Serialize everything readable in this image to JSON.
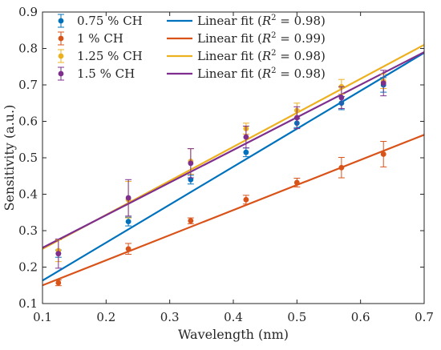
{
  "chart_data": {
    "type": "scatter",
    "xlabel": "Wavelength (nm)",
    "ylabel": "Sensitivity (a.u.)",
    "xlim": [
      0.1,
      0.7
    ],
    "ylim": [
      0.1,
      0.9
    ],
    "xticks": [
      "0.1",
      "0.2",
      "0.3",
      "0.4",
      "0.5",
      "0.6",
      "0.7"
    ],
    "yticks": [
      "0.1",
      "0.2",
      "0.3",
      "0.4",
      "0.5",
      "0.6",
      "0.7",
      "0.8",
      "0.9"
    ],
    "grid": false,
    "legend_position": "top-left",
    "series": [
      {
        "name": "0.75 % CH",
        "color": "#0072BD",
        "x": [
          0.125,
          0.235,
          0.333,
          0.42,
          0.5,
          0.57,
          0.636
        ],
        "y": [
          0.237,
          0.325,
          0.44,
          0.515,
          0.595,
          0.65,
          0.7
        ],
        "err": [
          0.01,
          0.012,
          0.012,
          0.012,
          0.012,
          0.018,
          0.02
        ],
        "fit_name": "Linear fit",
        "fit_r2": "0.98",
        "fit_line": [
          [
            0.1,
            0.163
          ],
          [
            0.7,
            0.788
          ]
        ]
      },
      {
        "name": "1 % CH",
        "color": "#D95319",
        "x": [
          0.125,
          0.235,
          0.333,
          0.42,
          0.5,
          0.57,
          0.636
        ],
        "y": [
          0.157,
          0.25,
          0.327,
          0.385,
          0.432,
          0.473,
          0.51
        ],
        "err": [
          0.008,
          0.015,
          0.008,
          0.012,
          0.012,
          0.028,
          0.035
        ],
        "fit_name": "Linear fit",
        "fit_r2": "0.99",
        "fit_line": [
          [
            0.1,
            0.15
          ],
          [
            0.7,
            0.563
          ]
        ]
      },
      {
        "name": "1.25 % CH",
        "color": "#EDB120",
        "x": [
          0.125,
          0.235,
          0.333,
          0.42,
          0.5,
          0.57,
          0.636
        ],
        "y": [
          0.245,
          0.385,
          0.49,
          0.58,
          0.63,
          0.695,
          0.71
        ],
        "err": [
          0.03,
          0.05,
          0.035,
          0.015,
          0.02,
          0.02,
          0.02
        ],
        "fit_name": "Linear fit",
        "fit_r2": "0.98",
        "fit_line": [
          [
            0.1,
            0.25
          ],
          [
            0.7,
            0.81
          ]
        ]
      },
      {
        "name": "1.5 % CH",
        "color": "#7E2F8E",
        "x": [
          0.125,
          0.235,
          0.333,
          0.42,
          0.5,
          0.57,
          0.636
        ],
        "y": [
          0.237,
          0.39,
          0.485,
          0.557,
          0.61,
          0.665,
          0.705
        ],
        "err": [
          0.04,
          0.05,
          0.04,
          0.03,
          0.03,
          0.03,
          0.035
        ],
        "fit_name": "Linear fit",
        "fit_r2": "0.98",
        "fit_line": [
          [
            0.1,
            0.253
          ],
          [
            0.7,
            0.79
          ]
        ]
      }
    ]
  }
}
